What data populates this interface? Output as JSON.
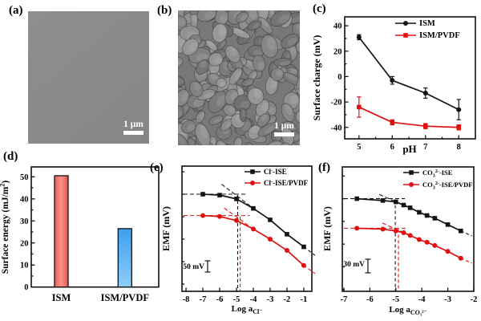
{
  "colors": {
    "series_black": "#141414",
    "series_red": "#e01010",
    "bar_red": [
      "#ee5f58",
      "#f9938d",
      "#ea4f48"
    ],
    "bar_blue": [
      "#3d9fee",
      "#8ecdf9"
    ],
    "sem_a_gray": "#8a8a8a",
    "sem_b_gray": "#787878",
    "scalebar_white": "#ffffff"
  },
  "panels": {
    "a": {
      "label": "(a)",
      "scalebar_text": "1 μm"
    },
    "b": {
      "label": "(b)",
      "scalebar_text": "1 μm"
    },
    "c": {
      "label": "(c)"
    },
    "d": {
      "label": "(d)"
    },
    "e": {
      "label": "(e)"
    },
    "f": {
      "label": "(f)"
    }
  },
  "chart_data": [
    {
      "panel": "c",
      "type": "line",
      "title": "",
      "xlabel": "pH",
      "ylabel": "Surface charge (mV)",
      "x": [
        5,
        6,
        7,
        8
      ],
      "xlim": [
        4.57,
        8.5
      ],
      "ylim": [
        -49,
        47
      ],
      "xticks": [
        5,
        6,
        7,
        8
      ],
      "yticks": [
        -40,
        -20,
        0,
        20,
        40
      ],
      "xminor": [
        5.5,
        6.5,
        7.5
      ],
      "yminor": [
        -30,
        -10,
        10,
        30
      ],
      "grid": false,
      "legend_position": "top-right",
      "series": [
        {
          "name": "ISM",
          "color": "#141414",
          "marker": "circle",
          "values": [
            31,
            -3,
            -13,
            -26
          ],
          "errors": [
            2,
            3,
            4,
            8
          ]
        },
        {
          "name": "ISM/PVDF",
          "color": "#e01010",
          "marker": "square",
          "values": [
            -24,
            -36,
            -39,
            -40
          ],
          "errors": [
            8,
            2,
            2,
            2
          ]
        }
      ]
    },
    {
      "panel": "d",
      "type": "bar",
      "title": "",
      "xlabel": "",
      "ylabel": "Surface energy (mJ/m^{2})",
      "categories": [
        "ISM",
        "ISM/PVDF"
      ],
      "values": [
        50.5,
        26.5
      ],
      "ylim": [
        0,
        54.5
      ],
      "yticks": [
        0,
        10,
        20,
        30,
        40,
        50
      ],
      "yminor": [
        5,
        15,
        25,
        35,
        45
      ],
      "grid": false
    },
    {
      "panel": "e",
      "type": "ise-line",
      "title": "",
      "xlabel": "Log a_{Cl⁻}",
      "ylabel": "EMF (mV)",
      "scale_bar_label": "50 mV",
      "scale_bar_mV": 50,
      "note": "y axis unlabeled; EMF values in mV relative to upper-curve plateau = 0",
      "x": [
        -7,
        -6,
        -5,
        -4,
        -3,
        -2,
        -1
      ],
      "xlim": [
        -8.24,
        -0.52
      ],
      "xticks": [
        -8,
        -7,
        -6,
        -5,
        -4,
        -3,
        -2,
        -1
      ],
      "ylim_mV": [
        -432,
        125
      ],
      "yminor_mV": [
        100,
        0,
        -100,
        -200,
        -300,
        -400
      ],
      "grid": false,
      "legend_position": "top-right",
      "series": [
        {
          "name": "Cl^{-}-ISE",
          "color": "#141414",
          "marker": "square",
          "values": [
            0,
            -4,
            -21,
            -63,
            -114,
            -178,
            -234
          ],
          "detection_limit_log": -4.93,
          "linear_from_index": 3
        },
        {
          "name": "Cl^{-}-ISE/PVDF",
          "color": "#e01010",
          "marker": "circle",
          "values": [
            -95,
            -99,
            -117,
            -155,
            -200,
            -250,
            -317
          ],
          "detection_limit_log": -4.78,
          "linear_from_index": 3
        }
      ]
    },
    {
      "panel": "f",
      "type": "ise-line",
      "title": "",
      "xlabel": "Log a_{CO₃²⁻}",
      "ylabel": "EMF (mV)",
      "scale_bar_label": "30 mV",
      "scale_bar_mV": 30,
      "note": "y axis unlabeled; EMF values in mV relative to upper-curve plateau = 0",
      "x": [
        -6.5,
        -5.5,
        -5.0,
        -4.7,
        -4.45,
        -4.1,
        -3.8,
        -3.5,
        -3.0,
        -2.5
      ],
      "xlim": [
        -7.06,
        -2.0
      ],
      "xticks": [
        -7,
        -6,
        -5,
        -4,
        -3,
        -2
      ],
      "ylim_mV": [
        -204,
        70
      ],
      "yminor_mV": [
        50,
        0,
        -50,
        -100,
        -150,
        -200
      ],
      "grid": false,
      "legend_position": "top-right",
      "series": [
        {
          "name": "CO_{3}^{2-}-ISE",
          "color": "#141414",
          "marker": "square",
          "values": [
            0,
            -4,
            -7,
            -14,
            -20,
            -30,
            -37,
            -43,
            -57,
            -71
          ],
          "detection_limit_log": -5.02,
          "linear_from_index": 5
        },
        {
          "name": "CO_{3}^{2-}-ISE/PVDF",
          "color": "#e01010",
          "marker": "circle",
          "values": [
            -65,
            -67,
            -71,
            -75,
            -81,
            -90,
            -96,
            -103,
            -116,
            -131
          ],
          "detection_limit_log": -4.9,
          "linear_from_index": 5
        }
      ]
    }
  ]
}
